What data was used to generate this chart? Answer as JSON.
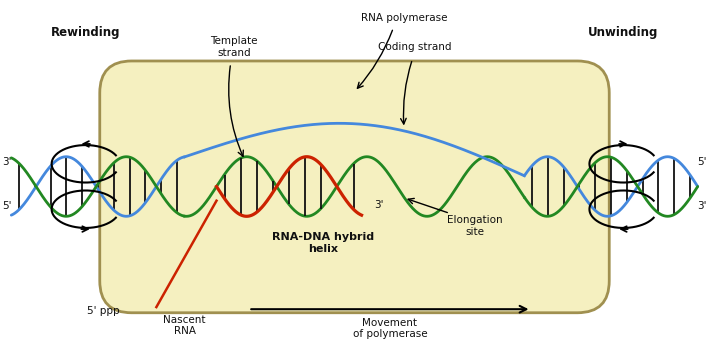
{
  "background_color": "#ffffff",
  "bubble_color": "#f5f0c0",
  "bubble_edge_color": "#a09050",
  "fig_width": 7.09,
  "fig_height": 3.56,
  "dna_blue_color": "#4488dd",
  "dna_green_color": "#228822",
  "rna_red_color": "#cc2200",
  "strand_lw": 2.0,
  "rung_color": "#111111",
  "rung_lw": 1.3,
  "text_color": "#111111",
  "labels": {
    "rna_polymerase": "RNA polymerase",
    "template_strand": "Template\nstrand",
    "coding_strand": "Coding strand",
    "rewinding": "Rewinding",
    "unwinding": "Unwinding",
    "rna_dna_hybrid": "RNA-DNA hybrid\nhelix",
    "elongation_site": "Elongation\nsite",
    "nascent_rna": "Nascent\nRNA",
    "five_ppp": "5' ppp",
    "movement": "Movement\nof polymerase",
    "three_left_top": "3'",
    "five_left_bot": "5'",
    "five_right_top": "5'",
    "three_right_bot": "3'",
    "three_prime_rna": "3'"
  }
}
